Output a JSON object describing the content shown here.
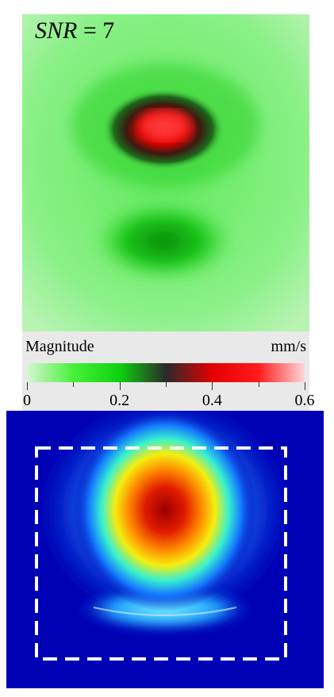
{
  "top_panel": {
    "annotation_symbol": "SNR",
    "annotation_rest": " = 7"
  },
  "colorbar": {
    "title": "Magnitude",
    "unit": "mm/s",
    "ticks": [
      "0",
      "0.2",
      "0.4",
      "0.6"
    ],
    "tick_values": [
      0,
      0.2,
      0.4,
      0.6
    ],
    "range": [
      0,
      0.6
    ],
    "gradient_colors": [
      "#d7f7d2",
      "#48f03a",
      "#0fd10f",
      "#2a2a2a",
      "#e30000",
      "#ff1b1b",
      "#ffd8d8"
    ]
  },
  "bottom_panel": {
    "background_color": "#0000b4",
    "roi_box_color": "#ffffff"
  }
}
